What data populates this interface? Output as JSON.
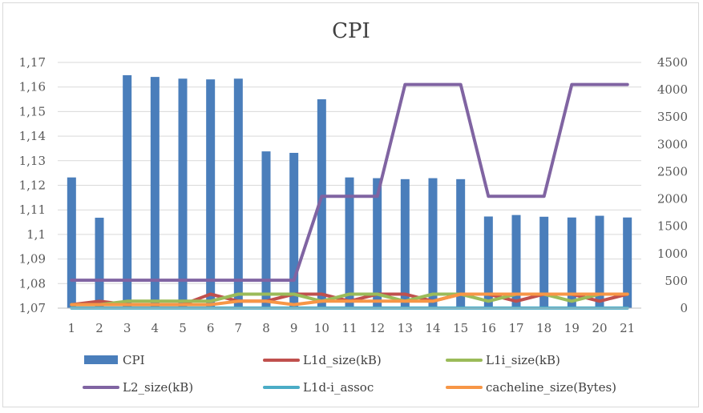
{
  "chart_data": {
    "type": "bar",
    "title": "CPI",
    "categories": [
      "1",
      "2",
      "3",
      "4",
      "5",
      "6",
      "7",
      "8",
      "9",
      "10",
      "11",
      "12",
      "13",
      "14",
      "15",
      "16",
      "17",
      "18",
      "19",
      "20",
      "21"
    ],
    "y_left": {
      "ticks": [
        "1,07",
        "1,08",
        "1,09",
        "1,1",
        "1,11",
        "1,12",
        "1,13",
        "1,14",
        "1,15",
        "1,16",
        "1,17"
      ],
      "min": 1.07,
      "max": 1.17
    },
    "y_right": {
      "ticks": [
        "0",
        "500",
        "1000",
        "1500",
        "2000",
        "2500",
        "3000",
        "3500",
        "4000",
        "4500"
      ],
      "min": 0,
      "max": 4500
    },
    "series": [
      {
        "name": "CPI",
        "kind": "bar",
        "axis": "left",
        "color": "#4a7ebb",
        "values": [
          1.1232,
          1.1068,
          1.1648,
          1.1641,
          1.1634,
          1.1631,
          1.1634,
          1.1338,
          1.1332,
          1.155,
          1.1232,
          1.1229,
          1.1225,
          1.1229,
          1.1225,
          1.1073,
          1.1079,
          1.1072,
          1.1069,
          1.1076,
          1.1069
        ]
      },
      {
        "name": "L1d_size(kB)",
        "kind": "line",
        "axis": "right",
        "color": "#c0504d",
        "values": [
          64,
          128,
          64,
          64,
          64,
          256,
          128,
          128,
          256,
          256,
          128,
          256,
          256,
          128,
          256,
          256,
          128,
          256,
          256,
          128,
          256
        ]
      },
      {
        "name": "L1i_size(kB)",
        "kind": "line",
        "axis": "right",
        "color": "#9bbb59",
        "values": [
          64,
          64,
          128,
          128,
          128,
          128,
          256,
          256,
          256,
          128,
          256,
          256,
          128,
          256,
          256,
          128,
          256,
          256,
          128,
          256,
          256
        ]
      },
      {
        "name": "L2_size(kB)",
        "kind": "line",
        "axis": "right",
        "color": "#8064a2",
        "values": [
          512,
          512,
          512,
          512,
          512,
          512,
          512,
          512,
          512,
          2048,
          2048,
          2048,
          4096,
          4096,
          4096,
          2048,
          2048,
          2048,
          4096,
          4096,
          4096
        ]
      },
      {
        "name": "L1d-i_assoc",
        "kind": "line",
        "axis": "right",
        "color": "#4bacc6",
        "values": [
          2,
          2,
          2,
          2,
          2,
          2,
          2,
          2,
          2,
          2,
          2,
          2,
          2,
          2,
          2,
          2,
          2,
          2,
          2,
          2,
          2
        ]
      },
      {
        "name": "cacheline_size(Bytes)",
        "kind": "line",
        "axis": "right",
        "color": "#f79646",
        "values": [
          64,
          64,
          64,
          64,
          64,
          64,
          128,
          128,
          64,
          128,
          128,
          128,
          128,
          128,
          256,
          256,
          256,
          256,
          256,
          256,
          256
        ]
      }
    ],
    "legend_position": "bottom",
    "grid": true
  }
}
